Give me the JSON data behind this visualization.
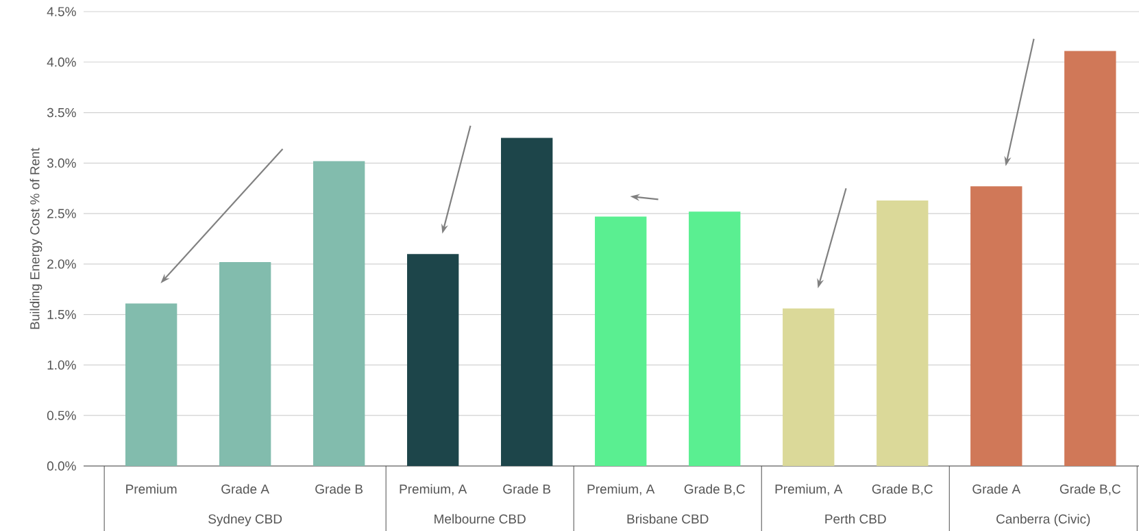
{
  "chart_data": {
    "type": "bar",
    "ylabel": "Building Energy Cost % of Rent",
    "categories": [
      "Premium",
      "Grade A",
      "Grade B",
      "Premium, A",
      "Grade B",
      "Premium, A",
      "Grade B,C",
      "Premium, A",
      "Grade B,C",
      "Grade A",
      "Grade B,C"
    ],
    "series": [
      {
        "color": "#82bcad",
        "values": [
          1.61,
          2.02,
          3.02,
          null,
          null,
          null,
          null,
          null,
          null,
          null,
          null
        ]
      },
      {
        "color": "#1d454a",
        "values": [
          null,
          null,
          null,
          2.1,
          3.25,
          null,
          null,
          null,
          null,
          null,
          null
        ]
      },
      {
        "color": "#5aef91",
        "values": [
          null,
          null,
          null,
          null,
          null,
          2.47,
          2.52,
          null,
          null,
          null,
          null
        ]
      },
      {
        "color": "#dbd999",
        "values": [
          null,
          null,
          null,
          null,
          null,
          null,
          null,
          1.56,
          2.63,
          null,
          null
        ]
      },
      {
        "color": "#d07858",
        "values": [
          null,
          null,
          null,
          null,
          null,
          null,
          null,
          null,
          null,
          2.77,
          4.11
        ]
      }
    ],
    "ylim": [
      0,
      4.5
    ],
    "yticks": [
      {
        "value": 0,
        "label": "0.0%"
      },
      {
        "value": 0.5,
        "label": "0.5%"
      },
      {
        "value": 1,
        "label": "1.0%"
      },
      {
        "value": 1.5,
        "label": "1.5%"
      },
      {
        "value": 2,
        "label": "2.0%"
      },
      {
        "value": 2.5,
        "label": "2.5%"
      },
      {
        "value": 3,
        "label": "3.0%"
      },
      {
        "value": 3.5,
        "label": "3.5%"
      },
      {
        "value": 4,
        "label": "4.0%"
      },
      {
        "value": 4.5,
        "label": "4.5%"
      }
    ],
    "grid": "y",
    "annotations": [
      "Sydney CBD",
      "Melbourne CBD",
      "Brisbane CBD",
      "Perth CBD",
      "Canberra (Civic)"
    ]
  }
}
